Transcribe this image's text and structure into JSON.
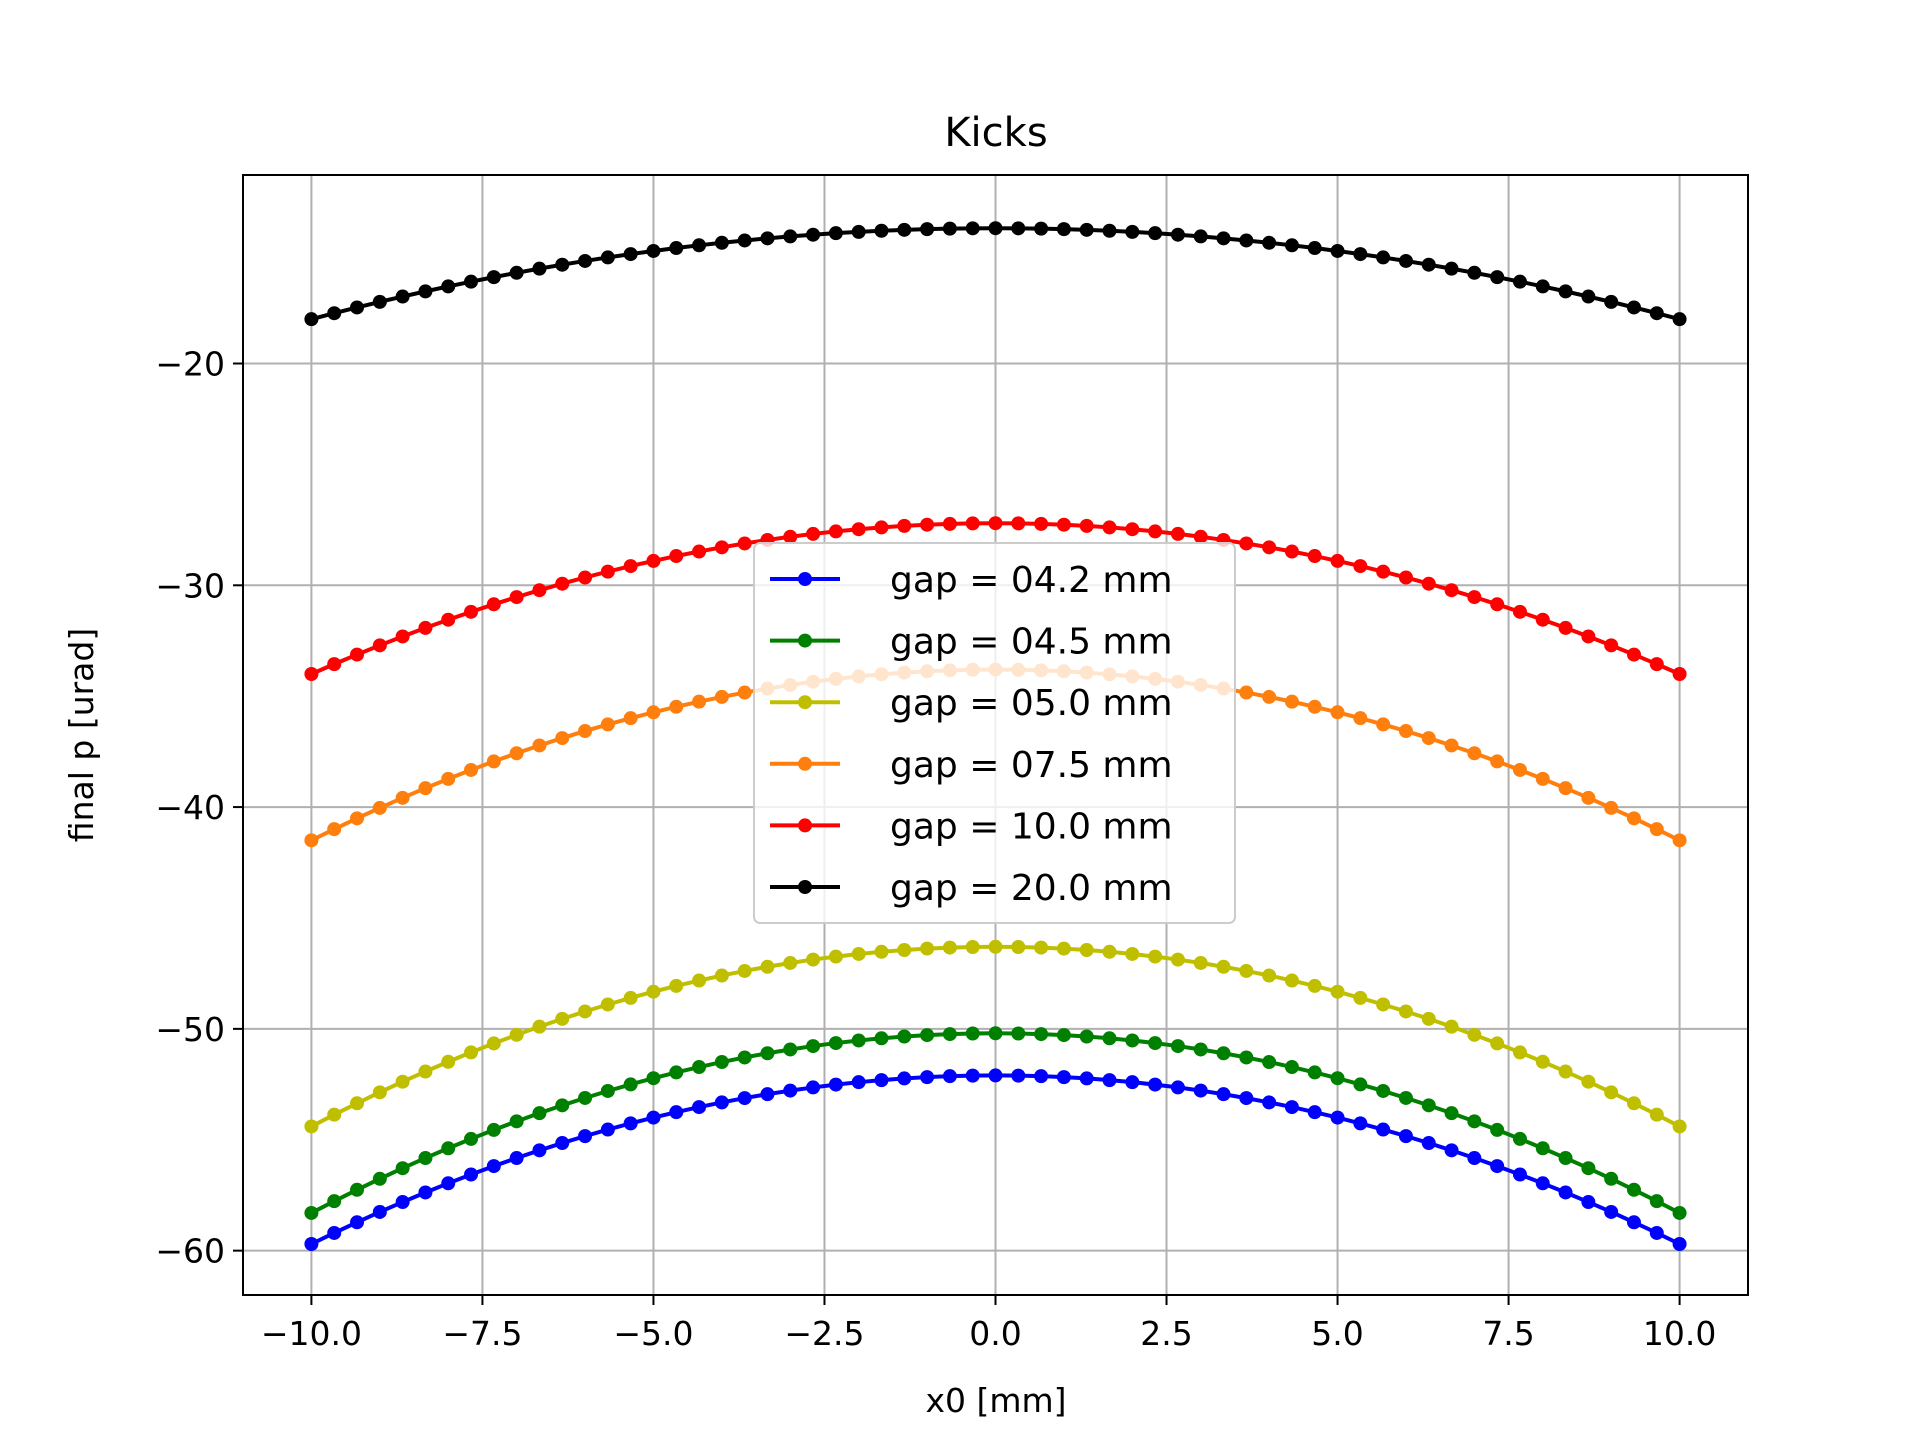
{
  "chart_data": {
    "type": "line",
    "title": "Kicks",
    "xlabel": "x0 [mm]",
    "ylabel": "final p [urad]",
    "xlim": [
      -11.0,
      11.0
    ],
    "ylim": [
      -62.0,
      -11.5
    ],
    "xticks": [
      -10.0,
      -7.5,
      -5.0,
      -2.5,
      0.0,
      2.5,
      5.0,
      7.5,
      10.0
    ],
    "xtick_labels": [
      "−10.0",
      "−7.5",
      "−5.0",
      "−2.5",
      "0.0",
      "2.5",
      "5.0",
      "7.5",
      "10.0"
    ],
    "yticks": [
      -60,
      -50,
      -40,
      -30,
      -20
    ],
    "ytick_labels": [
      "−60",
      "−50",
      "−40",
      "−30",
      "−20"
    ],
    "grid": true,
    "legend_position": "center",
    "x_range": [
      -10.0,
      10.0
    ],
    "points_per_series": 61,
    "series": [
      {
        "name": "gap = 04.2 mm",
        "color": "#0000ff",
        "y_center": -52.1,
        "y_edge": -59.7
      },
      {
        "name": "gap = 04.5 mm",
        "color": "#008000",
        "y_center": -50.2,
        "y_edge": -58.3
      },
      {
        "name": "gap = 05.0 mm",
        "color": "#bfbf00",
        "y_center": -46.3,
        "y_edge": -54.4
      },
      {
        "name": "gap = 07.5 mm",
        "color": "#ff7f0e",
        "y_center": -33.8,
        "y_edge": -41.5
      },
      {
        "name": "gap = 10.0 mm",
        "color": "#ff0000",
        "y_center": -27.2,
        "y_edge": -34.0
      },
      {
        "name": "gap = 20.0 mm",
        "color": "#000000",
        "y_center": -13.9,
        "y_edge": -18.0
      }
    ]
  }
}
